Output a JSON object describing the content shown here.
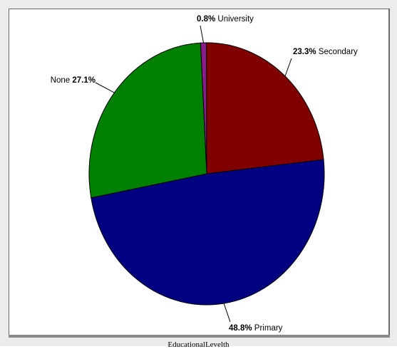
{
  "chart_data": {
    "type": "pie",
    "title": "",
    "caption": "EducationalLevelth",
    "slices": [
      {
        "label": "University",
        "value": 0.8,
        "value_text": "0.8%",
        "color": "#8b1a8b"
      },
      {
        "label": "Secondary",
        "value": 23.3,
        "value_text": "23.3%",
        "color": "#800000"
      },
      {
        "label": "Primary",
        "value": 48.8,
        "value_text": "48.8%",
        "color": "#000080"
      },
      {
        "label": "None",
        "value": 27.1,
        "value_text": "27.1%",
        "color": "#008000"
      }
    ],
    "start_angle_deg": -3,
    "direction": "clockwise",
    "legend": "none",
    "slice_border_color": "#000000"
  }
}
